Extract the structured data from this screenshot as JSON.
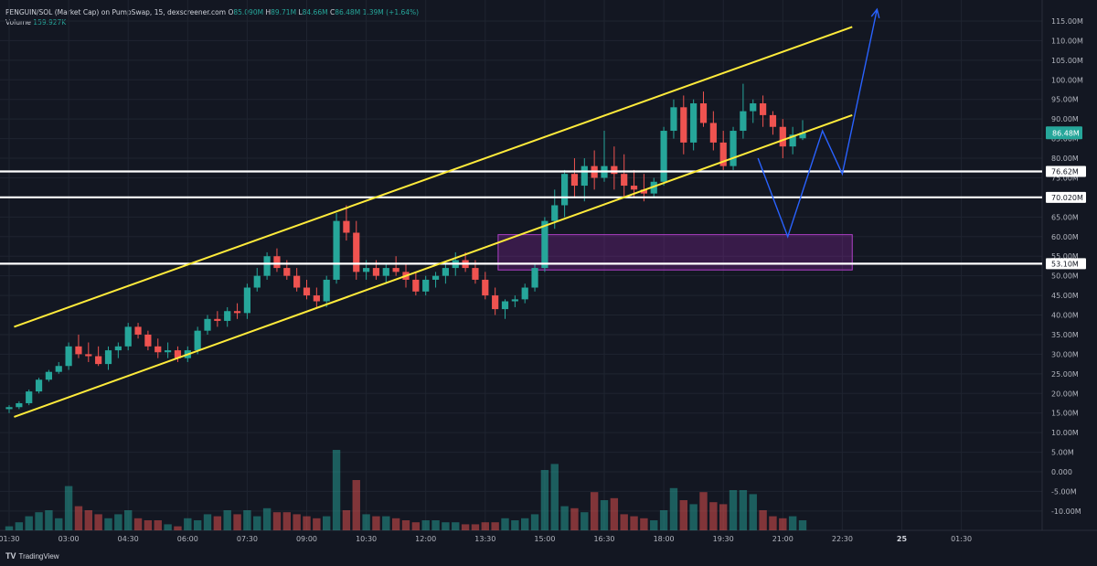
{
  "header": {
    "pair": "PENGUIN/SOL (Market Cap) on PumpSwap, 15, dexscreener.com",
    "o_label": "O",
    "o_value": "85.090M",
    "h_label": "H",
    "h_value": "89.71M",
    "l_label": "L",
    "l_value": "84.66M",
    "c_label": "C",
    "c_value": "86.48M",
    "change": "1.39M (+1.64%)",
    "volume_label": "Volume",
    "volume_value": "159.927K"
  },
  "branding": {
    "icon": "tradingview-logo-icon",
    "text": "TradingView"
  },
  "colors": {
    "background": "#131722",
    "up": "#26a69a",
    "down": "#ef5350",
    "channel": "#ffeb3b",
    "level": "#ffffff",
    "projection": "#2962ff",
    "zone": "#9c27b0"
  },
  "chart_data": {
    "type": "candlestick",
    "title": "",
    "xlabel": "",
    "ylabel": "",
    "ylim": [
      -14000000,
      118000000
    ],
    "y_ticks": [
      "115.00M",
      "110.00M",
      "105.00M",
      "100.00M",
      "95.00M",
      "90.00M",
      "85.00M",
      "80.00M",
      "75.00M",
      "70.00M",
      "65.00M",
      "60.00M",
      "55.00M",
      "50.00M",
      "45.00M",
      "40.00M",
      "35.00M",
      "30.00M",
      "25.00M",
      "20.00M",
      "15.00M",
      "10.00M",
      "5.00M",
      "0.000",
      "-5.00M",
      "-10.00M"
    ],
    "x_ticks": [
      {
        "label": "01:30",
        "i": 0
      },
      {
        "label": "03:00",
        "i": 6
      },
      {
        "label": "04:30",
        "i": 12
      },
      {
        "label": "06:00",
        "i": 18
      },
      {
        "label": "07:30",
        "i": 24
      },
      {
        "label": "09:00",
        "i": 30
      },
      {
        "label": "10:30",
        "i": 36
      },
      {
        "label": "12:00",
        "i": 42
      },
      {
        "label": "13:30",
        "i": 48
      },
      {
        "label": "15:00",
        "i": 54
      },
      {
        "label": "16:30",
        "i": 60
      },
      {
        "label": "18:00",
        "i": 66
      },
      {
        "label": "19:30",
        "i": 72
      },
      {
        "label": "21:00",
        "i": 78
      },
      {
        "label": "22:30",
        "i": 84
      },
      {
        "label": "25",
        "i": 90,
        "bold": true
      },
      {
        "label": "01:30",
        "i": 96
      }
    ],
    "candles": [
      [
        16,
        17,
        15,
        16.5
      ],
      [
        16.5,
        18,
        16,
        17.5
      ],
      [
        17.5,
        21,
        17,
        20.5
      ],
      [
        20.5,
        24,
        20,
        23.5
      ],
      [
        23.5,
        26,
        23,
        25.5
      ],
      [
        25.5,
        28,
        25,
        27
      ],
      [
        27,
        33,
        26,
        32
      ],
      [
        32,
        35,
        29,
        30
      ],
      [
        30,
        33,
        28,
        29.5
      ],
      [
        29.5,
        32,
        27,
        27.5
      ],
      [
        27.5,
        32,
        26,
        31
      ],
      [
        31,
        33,
        29,
        32
      ],
      [
        32,
        38,
        31,
        37
      ],
      [
        37,
        38,
        34,
        35
      ],
      [
        35,
        36,
        31,
        32
      ],
      [
        32,
        34,
        29,
        30.5
      ],
      [
        30.5,
        33,
        29,
        31
      ],
      [
        31,
        32,
        28,
        29
      ],
      [
        29,
        32,
        28,
        31
      ],
      [
        31,
        37,
        30,
        36
      ],
      [
        36,
        40,
        35,
        39
      ],
      [
        39,
        41,
        37,
        38.5
      ],
      [
        38.5,
        42,
        37,
        41
      ],
      [
        41,
        43,
        39,
        40.5
      ],
      [
        40.5,
        48,
        39,
        47
      ],
      [
        47,
        52,
        46,
        50
      ],
      [
        50,
        56,
        49,
        55
      ],
      [
        55,
        57,
        51,
        52
      ],
      [
        52,
        54,
        49,
        50
      ],
      [
        50,
        52,
        46,
        47
      ],
      [
        47,
        49,
        44,
        45
      ],
      [
        45,
        47,
        42,
        43.5
      ],
      [
        43.5,
        50,
        42,
        49
      ],
      [
        49,
        66,
        48,
        64
      ],
      [
        64,
        68,
        59,
        61
      ],
      [
        61,
        64,
        49,
        51
      ],
      [
        51,
        54,
        49,
        52
      ],
      [
        52,
        54,
        49,
        50
      ],
      [
        50,
        53,
        48,
        52
      ],
      [
        52,
        55,
        50,
        51
      ],
      [
        51,
        53,
        47,
        49
      ],
      [
        49,
        51,
        45,
        46
      ],
      [
        46,
        50,
        45,
        49
      ],
      [
        49,
        51,
        47,
        50
      ],
      [
        50,
        53,
        48,
        52
      ],
      [
        52,
        56,
        50,
        54
      ],
      [
        54,
        56,
        51,
        52
      ],
      [
        52,
        54,
        48,
        49
      ],
      [
        49,
        51,
        44,
        45
      ],
      [
        45,
        47,
        40,
        41.5
      ],
      [
        41.5,
        44,
        39,
        43.5
      ],
      [
        43.5,
        45,
        42,
        44
      ],
      [
        44,
        48,
        43,
        47
      ],
      [
        47,
        53,
        46,
        52
      ],
      [
        52,
        65,
        51,
        64
      ],
      [
        64,
        72,
        62,
        68
      ],
      [
        68,
        77,
        65,
        76
      ],
      [
        76,
        80,
        70,
        73
      ],
      [
        73,
        80,
        69,
        78
      ],
      [
        78,
        82,
        72,
        75
      ],
      [
        75,
        87,
        74,
        78
      ],
      [
        78,
        83,
        72,
        76
      ],
      [
        76,
        81,
        70,
        73
      ],
      [
        73,
        77,
        70,
        72
      ],
      [
        72,
        76,
        69,
        71
      ],
      [
        71,
        75,
        70,
        74
      ],
      [
        74,
        88,
        73,
        87
      ],
      [
        87,
        95,
        85,
        93
      ],
      [
        93,
        96,
        81,
        84
      ],
      [
        84,
        95,
        82,
        94
      ],
      [
        94,
        97,
        88,
        89
      ],
      [
        89,
        92,
        82,
        84
      ],
      [
        84,
        87,
        77,
        78
      ],
      [
        78,
        88,
        77,
        87
      ],
      [
        87,
        99,
        85,
        92
      ],
      [
        92,
        95,
        89,
        94
      ],
      [
        94,
        96,
        88,
        91
      ],
      [
        91,
        92,
        86,
        88
      ],
      [
        88,
        90,
        80,
        83
      ],
      [
        83,
        88,
        81,
        86
      ],
      [
        85.09,
        89.71,
        84.66,
        86.48
      ]
    ],
    "volume": [
      2,
      4,
      7,
      9,
      10,
      6,
      22,
      12,
      10,
      8,
      6,
      8,
      10,
      6,
      5,
      5,
      3,
      2,
      6,
      5,
      8,
      7,
      10,
      8,
      10,
      7,
      11,
      9,
      9,
      8,
      7,
      6,
      7,
      40,
      10,
      25,
      8,
      7,
      7,
      6,
      5,
      4,
      5,
      5,
      4,
      4,
      3,
      3,
      4,
      4,
      6,
      5,
      6,
      8,
      30,
      33,
      12,
      11,
      9,
      19,
      15,
      16,
      8,
      7,
      6,
      5,
      10,
      21,
      15,
      13,
      19,
      14,
      13,
      20,
      20,
      18,
      10,
      7,
      6,
      7,
      5
    ],
    "channel_upper": {
      "start": [
        0.5,
        37
      ],
      "end": [
        85,
        113.5
      ]
    },
    "channel_lower": {
      "start": [
        0.5,
        14
      ],
      "end": [
        85,
        91
      ]
    },
    "levels": [
      {
        "value": 76.62,
        "label": "76.62M"
      },
      {
        "value": 70.02,
        "label": "70.020M"
      },
      {
        "value": 53.1,
        "label": "53.10M"
      }
    ],
    "zone": {
      "i_start": 49.3,
      "i_end": 85,
      "y_low": 51.5,
      "y_high": 60.5
    },
    "projection": [
      [
        75.5,
        80
      ],
      [
        78.5,
        60
      ],
      [
        82,
        87
      ],
      [
        84,
        76
      ],
      [
        87.5,
        118
      ]
    ],
    "last_price": {
      "value": 86.48,
      "label": "86.48M"
    }
  }
}
